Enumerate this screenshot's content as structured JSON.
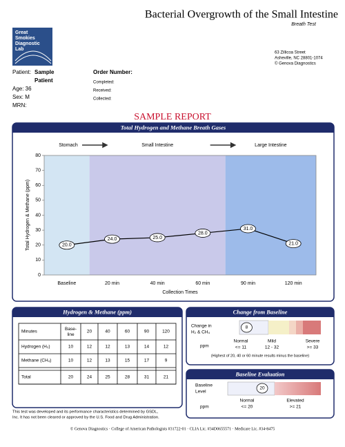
{
  "header": {
    "title": "Bacterial Overgrowth of the Small Intestine",
    "subtitle": "Breath Test",
    "logo": [
      "Great",
      "Smokies",
      "Diagnostic",
      "Lab"
    ],
    "address": [
      "63 Zillicoa Street",
      "Asheville, NC  28801-1074",
      "© Genova Diagnostics"
    ]
  },
  "patient": {
    "label": "Patient:",
    "name": [
      "Sample",
      "Patient"
    ],
    "age": "Age: 36",
    "sex": "Sex: M",
    "mrn": "MRN:"
  },
  "order": {
    "label": "Order Number:",
    "completed": "Completed:",
    "received": "Received:",
    "collected": "Collected:"
  },
  "banner": "SAMPLE REPORT",
  "chart_data": {
    "type": "line",
    "title": "Total Hydrogen and Methane Breath Gases",
    "ylabel": "Total Hydrogen & Methane (ppm)",
    "xlabel": "Collection Times",
    "categories": [
      "Baseline",
      "20 min",
      "40 min",
      "60 min",
      "90 min",
      "120 min"
    ],
    "values": [
      20,
      24,
      25,
      28,
      31,
      21
    ],
    "value_labels": [
      "20.0",
      "24.0",
      "25.0",
      "28.0",
      "31.0",
      "21.0"
    ],
    "ylim": [
      0,
      80
    ],
    "yticks": [
      0,
      10,
      20,
      30,
      40,
      50,
      60,
      70,
      80
    ],
    "regions": [
      {
        "label": "Stomach",
        "color": "#d3e5f3"
      },
      {
        "label": "Small Intestine",
        "color": "#c9c9ea"
      },
      {
        "label": "Large Intestine",
        "color": "#9dbbea"
      }
    ],
    "color": "#000000"
  },
  "table": {
    "title": "Hydrogen & Methane (ppm)",
    "header": [
      "Minutes",
      "Base-line",
      "20",
      "40",
      "60",
      "90",
      "120"
    ],
    "rows": [
      [
        "Hydrogen (H₂)",
        "10",
        "12",
        "12",
        "13",
        "14",
        "12"
      ],
      [
        "Methane (CH₄)",
        "10",
        "12",
        "13",
        "15",
        "17",
        "9"
      ],
      [
        "Total",
        "20",
        "24",
        "25",
        "28",
        "31",
        "21"
      ]
    ]
  },
  "change": {
    "title": "Change from Baseline",
    "label": [
      "Change in",
      "H₂ & CH₄"
    ],
    "unit": "ppm",
    "value": 8,
    "levels": [
      {
        "name": "Normal",
        "range": "<= 11"
      },
      {
        "name": "Mild",
        "range": "12 - 32"
      },
      {
        "name": "Severe",
        "range": ">= 33"
      }
    ],
    "note": "(Highest of 20, 40 or 60 minute results minus the baseline)"
  },
  "baseline": {
    "title": "Baseline Evaluation",
    "label": [
      "Baseline",
      "Level"
    ],
    "unit": "ppm",
    "value": 20,
    "levels": [
      {
        "name": "Normal",
        "range": "<= 20"
      },
      {
        "name": "Elevated",
        "range": ">= 21"
      }
    ]
  },
  "disclaimer": [
    "This test was developed and its performance characteristics determined by GSDL,",
    "Inc.  It has not been cleared or approved by the U.S. Food and Drug Administration."
  ],
  "footer": "© Genova Diagnostics · College of American Pathologists #31722-01 · CLIA Lic. #34D0655571 · Medicare Lic. #34-8475"
}
